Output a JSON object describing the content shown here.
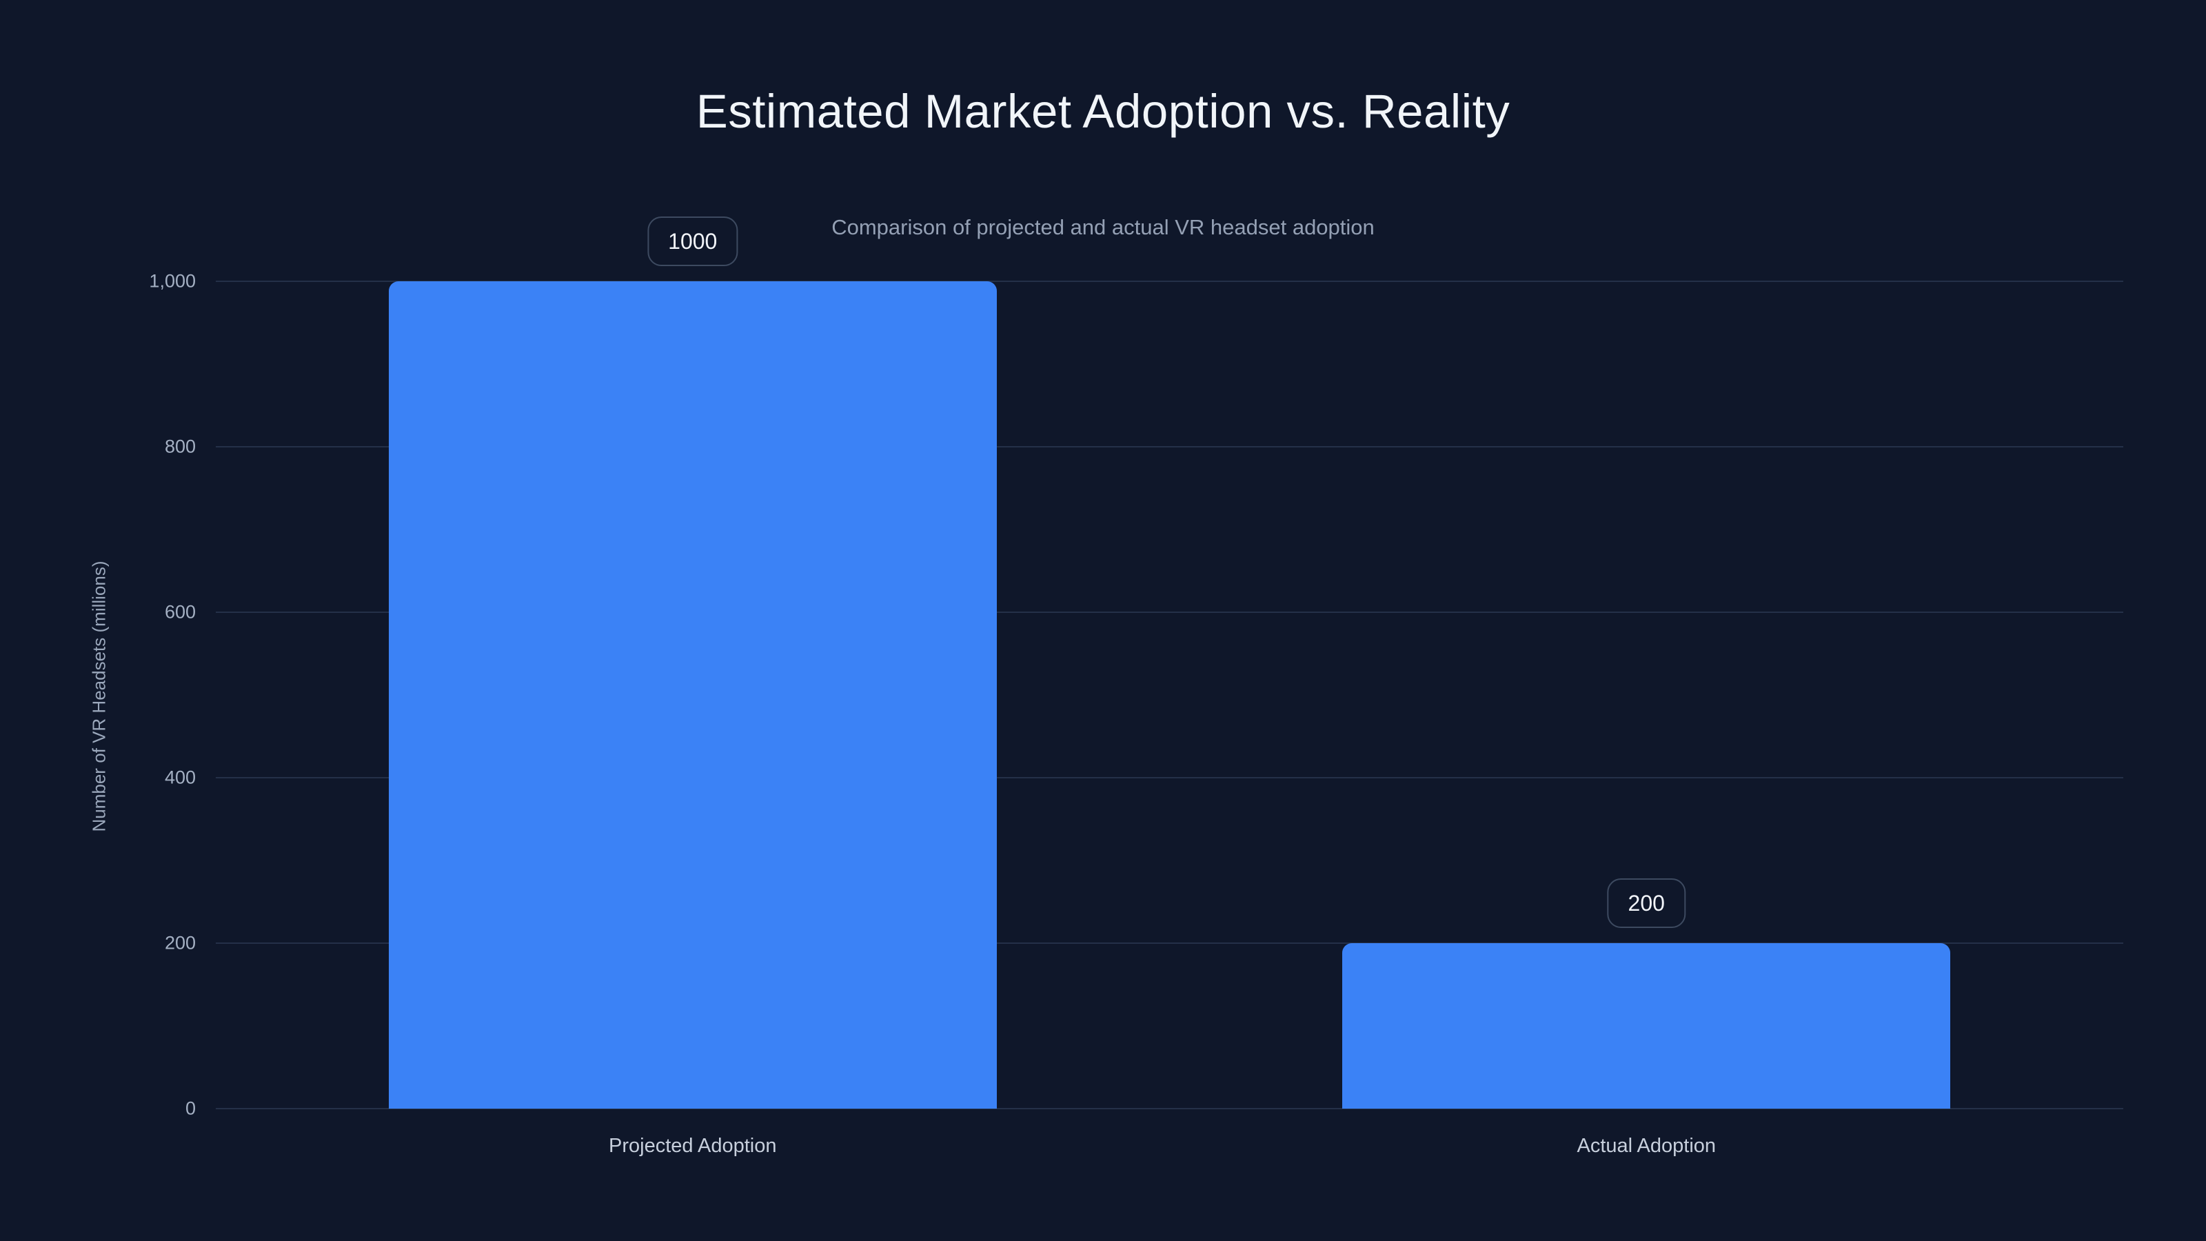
{
  "chart_data": {
    "type": "bar",
    "title": "Estimated Market Adoption vs. Reality",
    "subtitle": "Comparison of projected and actual VR headset adoption",
    "categories": [
      "Projected Adoption",
      "Actual Adoption"
    ],
    "values": [
      1000,
      200
    ],
    "value_labels": [
      "1000",
      "200"
    ],
    "xlabel": "",
    "ylabel": "Number of VR Headsets (millions)",
    "ylim": [
      0,
      1000
    ],
    "yticks": [
      {
        "value": 0,
        "label": "0"
      },
      {
        "value": 200,
        "label": "200"
      },
      {
        "value": 400,
        "label": "400"
      },
      {
        "value": 600,
        "label": "600"
      },
      {
        "value": 800,
        "label": "800"
      },
      {
        "value": 1000,
        "label": "1,000"
      }
    ],
    "grid": true,
    "legend": false,
    "bar_color": "#3b82f6"
  },
  "colors": {
    "background": "#0f172a",
    "bar": "#3b82f6",
    "gridline": "#243048",
    "title_text": "#f1f5f9",
    "subtitle_text": "#94a0b4",
    "axis_tick_text": "#a4b0c3",
    "category_text": "#c7cfdc",
    "badge_border": "#3d4a60",
    "badge_text": "#f2f5fa"
  }
}
